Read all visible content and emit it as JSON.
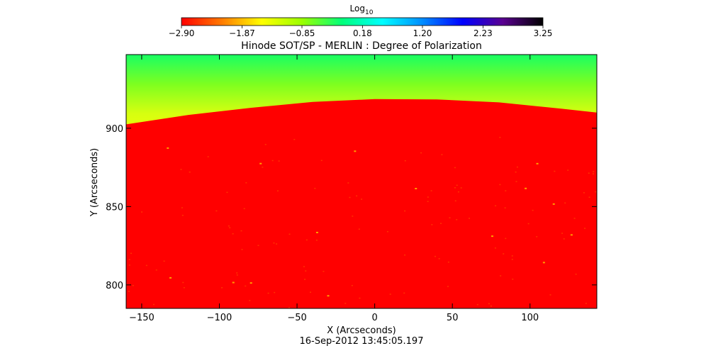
{
  "chart_data": {
    "type": "heatmap",
    "title": "Hinode SOT/SP - MERLIN : Degree of Polarization",
    "xlabel": "X (Arcseconds)",
    "ylabel": "Y (Arcseconds)",
    "footer": "16-Sep-2012 13:45:05.197",
    "xlim": [
      -160,
      143
    ],
    "ylim": [
      785,
      947
    ],
    "x_ticks": [
      -150,
      -100,
      -50,
      0,
      50,
      100
    ],
    "y_ticks": [
      800,
      850,
      900
    ],
    "x_tick_labels": [
      "−150",
      "−100",
      "−50",
      "0",
      "50",
      "100"
    ],
    "y_tick_labels": [
      "800",
      "850",
      "900"
    ],
    "colorbar": {
      "label_base": "Log",
      "label_sub": "10",
      "range": [
        -2.9,
        3.25
      ],
      "tick_values": [
        -2.9,
        -1.87,
        -0.85,
        0.18,
        1.2,
        2.23,
        3.25
      ],
      "tick_labels": [
        "−2.90",
        "−1.87",
        "−0.85",
        "0.18",
        "1.20",
        "2.23",
        "3.25"
      ],
      "colors": [
        "#ff0000",
        "#ff7a00",
        "#ffff00",
        "#9bff00",
        "#00ff7a",
        "#00ffff",
        "#008cff",
        "#0000ff",
        "#5a0090",
        "#000000"
      ]
    },
    "limb": {
      "points_x": [
        -160,
        -120,
        -80,
        -40,
        0,
        40,
        80,
        120,
        143
      ],
      "points_y": [
        902.5,
        908.5,
        913.0,
        916.8,
        918.6,
        918.4,
        916.5,
        912.5,
        910.0
      ]
    },
    "disk_value": -2.9,
    "offlimb_values": {
      "near_limb": -0.9,
      "top": 0.35
    }
  }
}
